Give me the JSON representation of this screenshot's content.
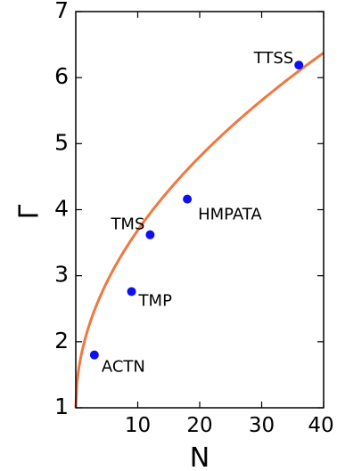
{
  "chart_data": {
    "type": "scatter",
    "title": "",
    "xlabel": "N",
    "ylabel": "Γ",
    "xlim": [
      0,
      40
    ],
    "ylim": [
      1,
      7
    ],
    "xticks": [
      "10",
      "20",
      "30",
      "40"
    ],
    "yticks": [
      "1",
      "2",
      "3",
      "4",
      "5",
      "6",
      "7"
    ],
    "grid": false,
    "points": [
      {
        "label": "ACTN",
        "x": 3,
        "y": 1.8
      },
      {
        "label": "TMP",
        "x": 9,
        "y": 2.76
      },
      {
        "label": "TMS",
        "x": 12,
        "y": 3.62
      },
      {
        "label": "HMPATA",
        "x": 18,
        "y": 4.16
      },
      {
        "label": "TTSS",
        "x": 36,
        "y": 6.19
      }
    ],
    "fit": {
      "type": "line",
      "shape": "power-law",
      "exponent": 0.5,
      "coefficient": 0.85,
      "offset": 1
    },
    "colors": {
      "points": "#1010ee",
      "fit": "#f07840",
      "axes": "#000000"
    }
  }
}
